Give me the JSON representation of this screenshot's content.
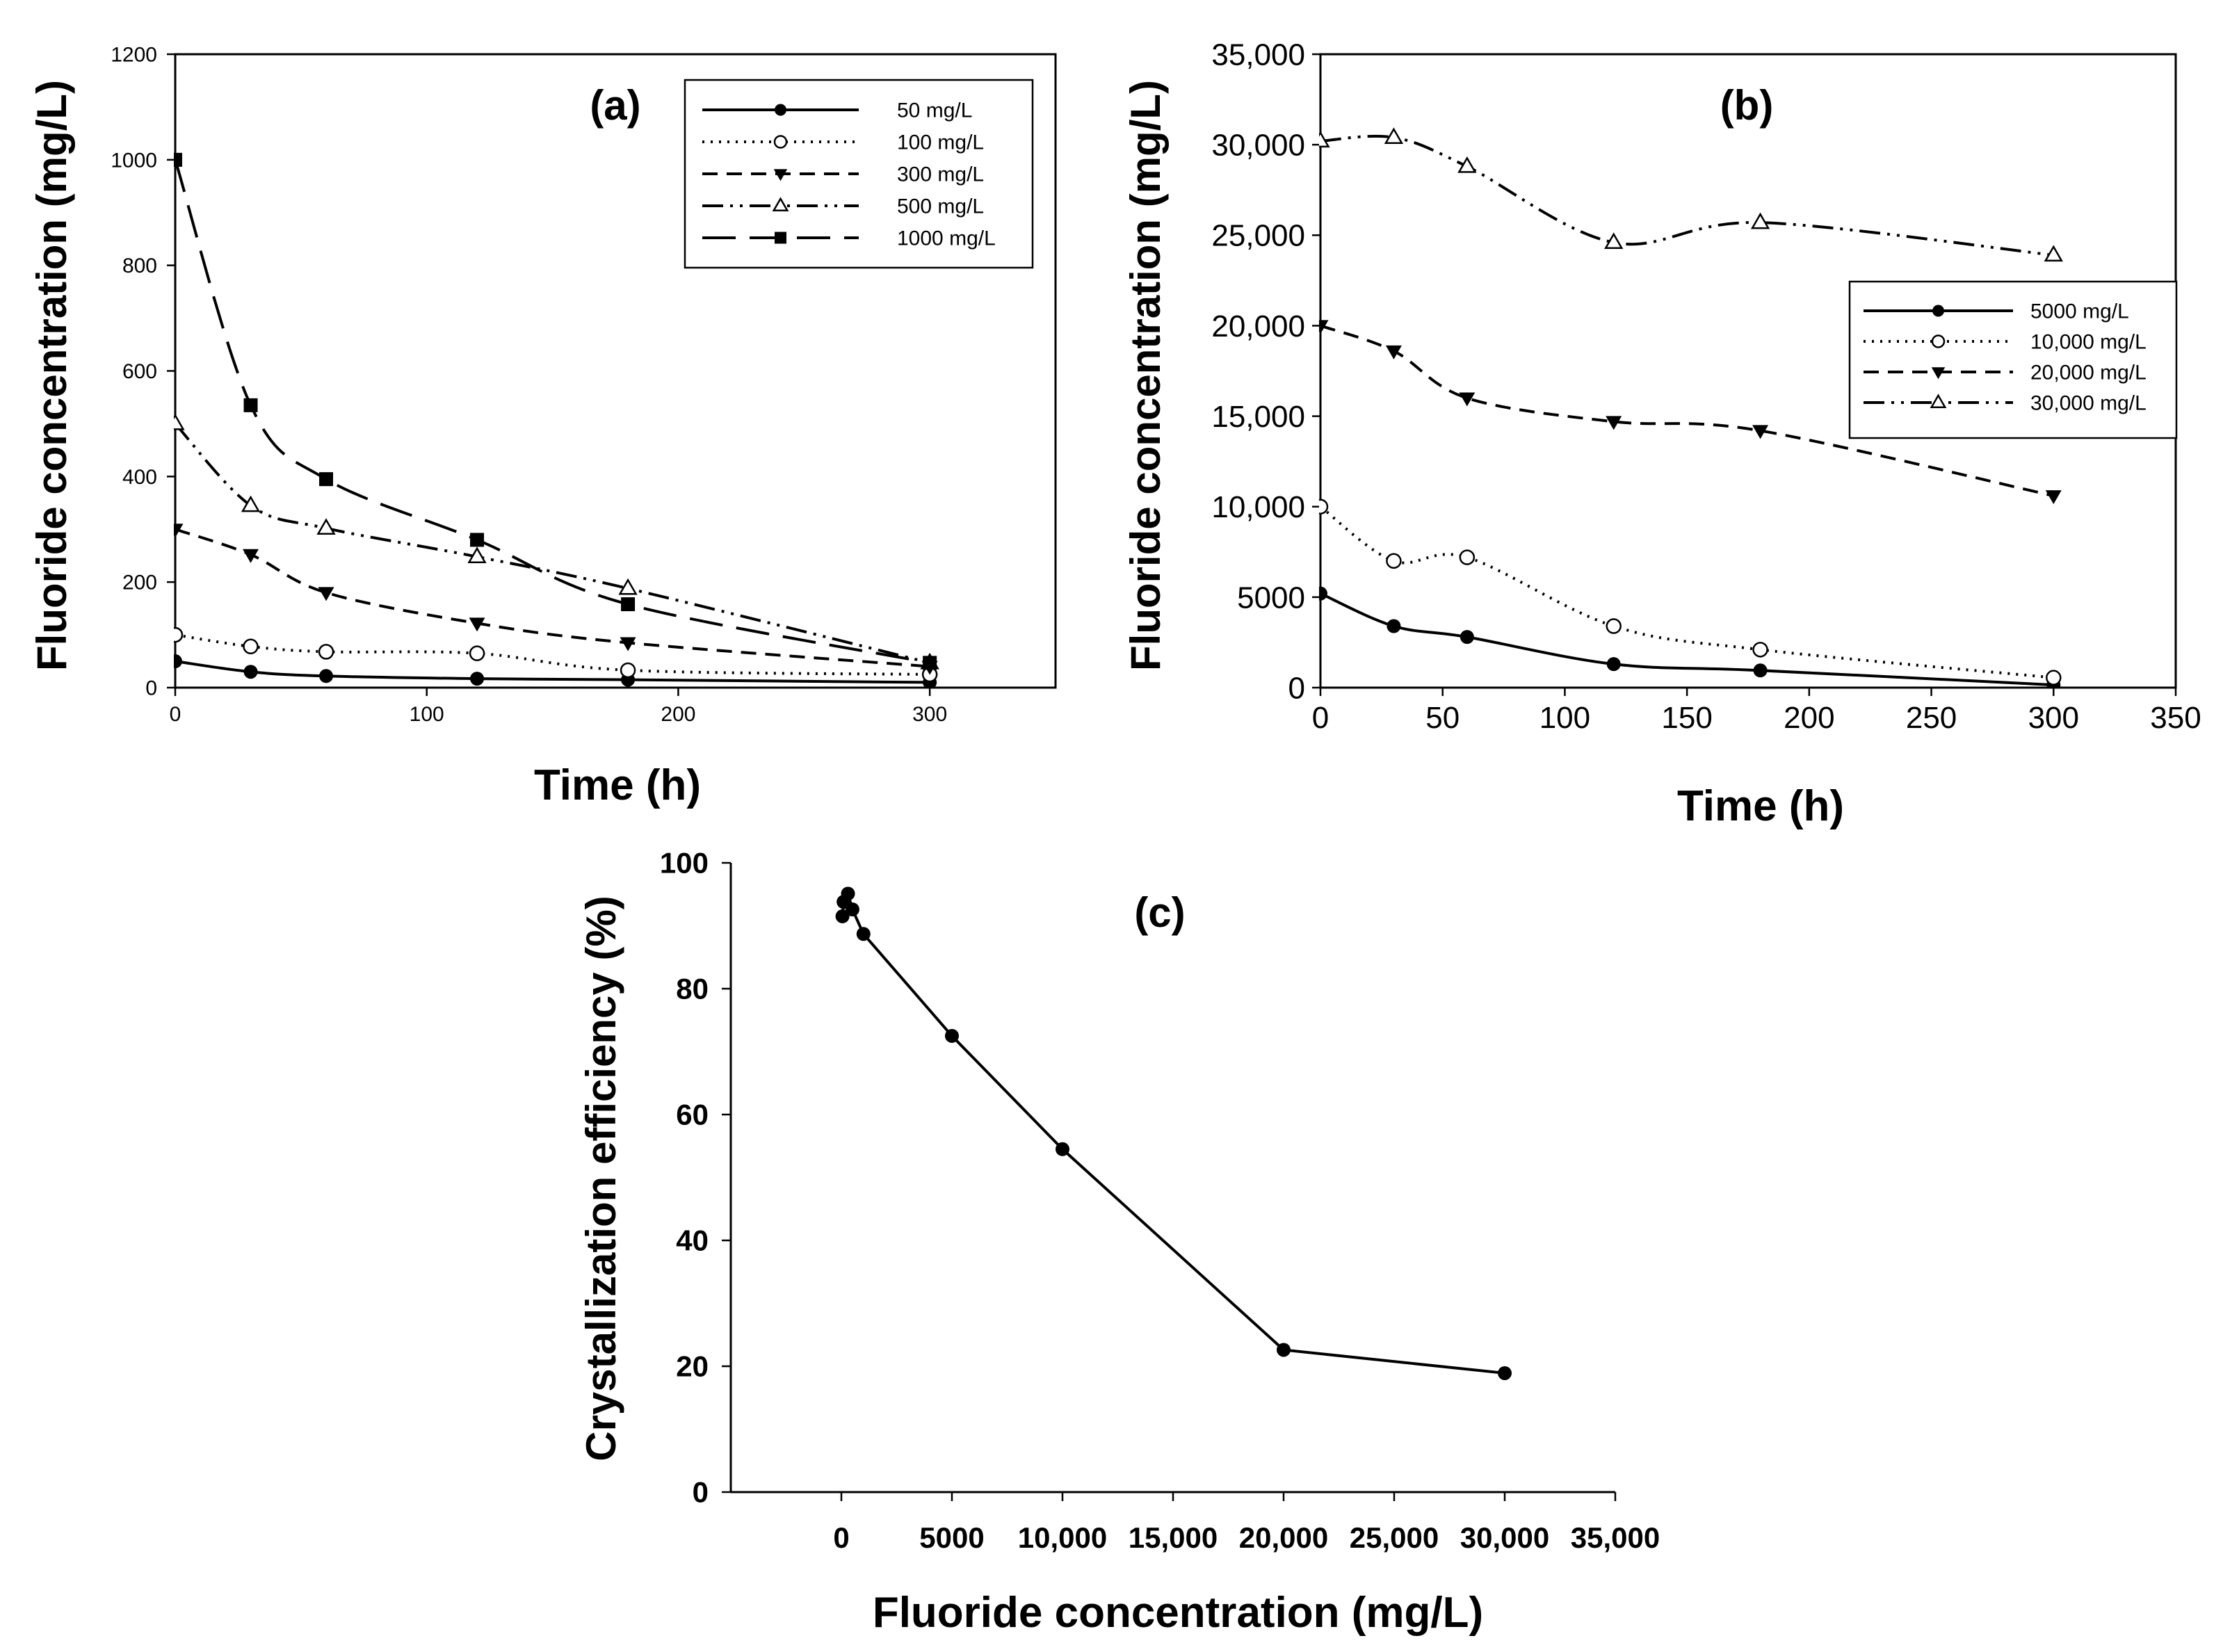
{
  "chart_data": [
    {
      "type": "line",
      "panel_label": "(a)",
      "xlabel": "Time (h)",
      "ylabel": "Fluoride concentration (mg/L)",
      "xlim": [
        0,
        350
      ],
      "ylim": [
        0,
        1200
      ],
      "xticks": [
        "0",
        "100",
        "200",
        "300"
      ],
      "yticks": [
        "0",
        "200",
        "400",
        "600",
        "800",
        "1000",
        "1200"
      ],
      "grid": false,
      "legend_position": "top-right",
      "series": [
        {
          "name": "50 mg/L",
          "line": "solid",
          "marker": "filled-circle",
          "x": [
            0,
            30,
            60,
            120,
            180,
            300
          ],
          "y": [
            50,
            30,
            22,
            17,
            15,
            10
          ]
        },
        {
          "name": "100 mg/L",
          "line": "dotted",
          "marker": "open-circle",
          "x": [
            0,
            30,
            60,
            120,
            180,
            300
          ],
          "y": [
            100,
            78,
            68,
            65,
            33,
            25
          ]
        },
        {
          "name": "300 mg/L",
          "line": "dashed",
          "marker": "filled-triangle-down",
          "x": [
            0,
            30,
            60,
            120,
            180,
            300
          ],
          "y": [
            300,
            252,
            180,
            122,
            85,
            40
          ]
        },
        {
          "name": "500 mg/L",
          "line": "dash-dot-dot",
          "marker": "open-triangle-up",
          "x": [
            0,
            30,
            60,
            120,
            180,
            300
          ],
          "y": [
            500,
            345,
            302,
            248,
            188,
            47
          ]
        },
        {
          "name": "1000 mg/L",
          "line": "long-dash",
          "marker": "filled-square",
          "x": [
            0,
            30,
            60,
            120,
            180,
            300
          ],
          "y": [
            1000,
            535,
            395,
            280,
            158,
            47
          ]
        }
      ]
    },
    {
      "type": "line",
      "panel_label": "(b)",
      "xlabel": "Time (h)",
      "ylabel": "Fluoride concentration (mg/L)",
      "xlim": [
        0,
        350
      ],
      "ylim": [
        0,
        35000
      ],
      "xticks": [
        "0",
        "50",
        "100",
        "150",
        "200",
        "250",
        "300",
        "350"
      ],
      "yticks": [
        "0",
        "5000",
        "10,000",
        "15,000",
        "20,000",
        "25,000",
        "30,000",
        "35,000"
      ],
      "grid": false,
      "legend_position": "right",
      "series": [
        {
          "name": "5000 mg/L",
          "line": "solid",
          "marker": "filled-circle",
          "x": [
            0,
            30,
            60,
            120,
            180,
            300
          ],
          "y": [
            5200,
            3400,
            2800,
            1300,
            950,
            150
          ]
        },
        {
          "name": "10,000 mg/L",
          "line": "dotted",
          "marker": "open-circle",
          "x": [
            0,
            30,
            60,
            120,
            180,
            300
          ],
          "y": [
            10000,
            7000,
            7200,
            3400,
            2100,
            550
          ]
        },
        {
          "name": "20,000 mg/L",
          "line": "dashed",
          "marker": "filled-triangle-down",
          "x": [
            0,
            30,
            60,
            120,
            180,
            300
          ],
          "y": [
            20000,
            18600,
            16000,
            14700,
            14200,
            10600
          ]
        },
        {
          "name": "30,000 mg/L",
          "line": "dash-dot-dot",
          "marker": "open-triangle-up",
          "x": [
            0,
            30,
            60,
            120,
            180,
            300
          ],
          "y": [
            30200,
            30400,
            28800,
            24600,
            25700,
            23900
          ]
        }
      ]
    },
    {
      "type": "line",
      "panel_label": "(c)",
      "xlabel": "Fluoride concentration (mg/L)",
      "ylabel": "Crystallization efficiency (%)",
      "xlim": [
        -5000,
        35000
      ],
      "ylim": [
        0,
        100
      ],
      "xticks": [
        "0",
        "5000",
        "10,000",
        "15,000",
        "20,000",
        "25,000",
        "30,000",
        "35,000"
      ],
      "xtick_values": [
        0,
        5000,
        10000,
        15000,
        20000,
        25000,
        30000,
        35000
      ],
      "yticks": [
        "0",
        "20",
        "40",
        "60",
        "80",
        "100"
      ],
      "grid": false,
      "series": [
        {
          "line": "solid",
          "marker": "filled-circle",
          "x": [
            50,
            100,
            300,
            500,
            1000,
            5000,
            10000,
            20000,
            30000
          ],
          "y": [
            91.5,
            93.8,
            95.1,
            92.6,
            88.7,
            72.5,
            54.5,
            22.6,
            18.9
          ]
        }
      ]
    }
  ]
}
